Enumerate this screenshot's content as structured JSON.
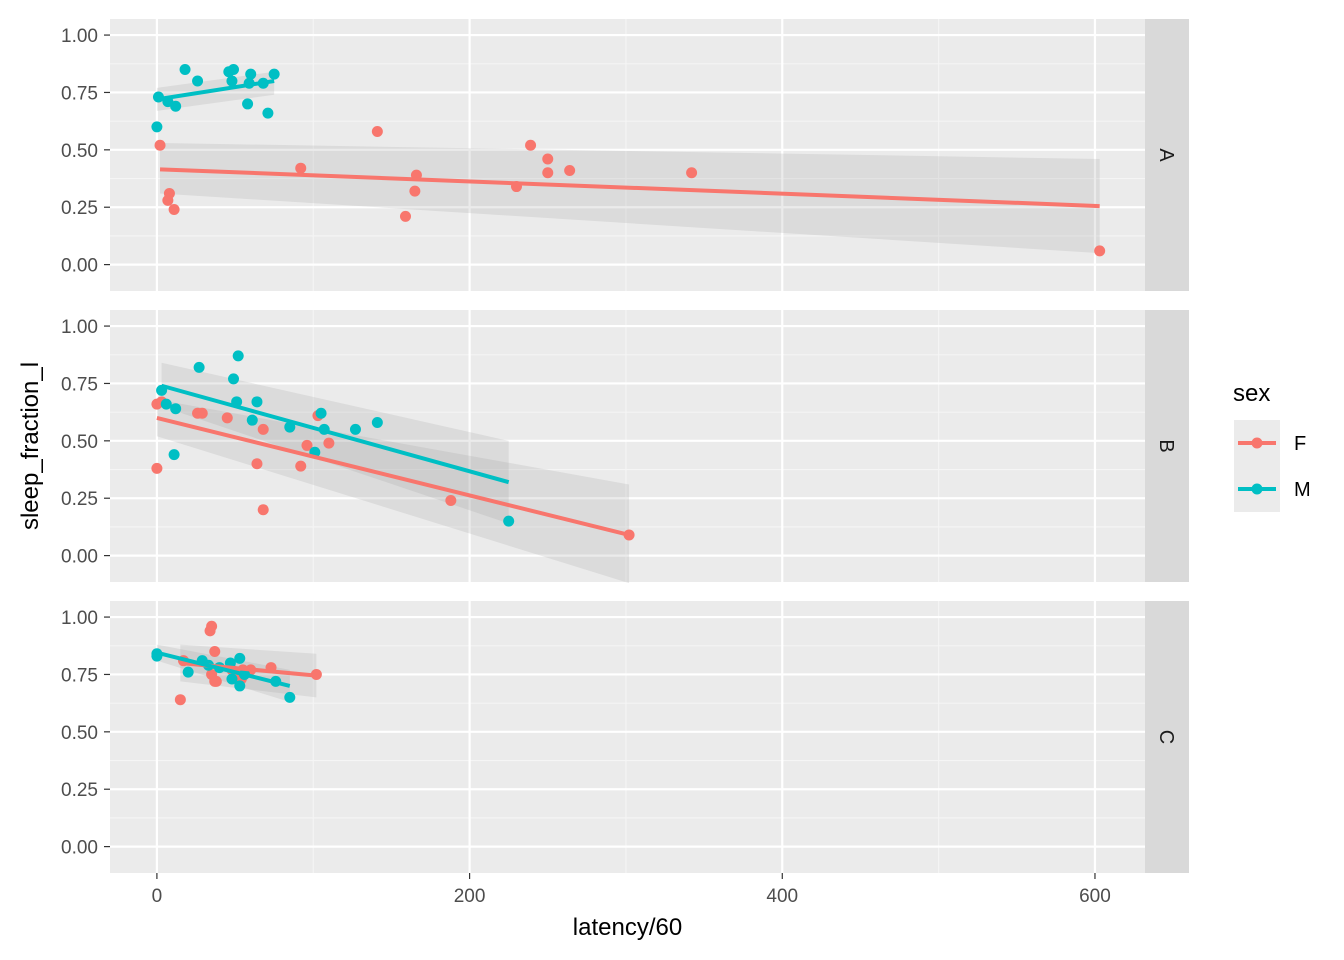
{
  "chart_data": {
    "type": "scatter",
    "xlabel": "latency/60",
    "ylabel": "sleep_fraction_l",
    "xlim": [
      -30,
      632
    ],
    "ylim": [
      -0.115,
      1.07
    ],
    "x_ticks": [
      0,
      200,
      400,
      600
    ],
    "x_tick_labels": [
      "0",
      "200",
      "400",
      "600"
    ],
    "y_ticks": [
      0,
      0.25,
      0.5,
      0.75,
      1.0
    ],
    "y_tick_labels": [
      "0.00",
      "0.25",
      "0.50",
      "0.75",
      "1.00"
    ],
    "grid": true,
    "smooth": "lm with confidence band",
    "legend": {
      "title": "sex",
      "position": "right",
      "entries": [
        {
          "label": "F",
          "color": "#F8766D"
        },
        {
          "label": "M",
          "color": "#00BFC4"
        }
      ]
    },
    "colors": {
      "F": "#F8766D",
      "M": "#00BFC4"
    },
    "facets": [
      {
        "label": "A",
        "series": [
          {
            "group": "F",
            "points": [
              [
                2,
                0.52
              ],
              [
                8,
                0.31
              ],
              [
                7,
                0.28
              ],
              [
                11,
                0.24
              ],
              [
                92,
                0.42
              ],
              [
                141,
                0.58
              ],
              [
                166,
                0.39
              ],
              [
                165,
                0.32
              ],
              [
                159,
                0.21
              ],
              [
                230,
                0.34
              ],
              [
                239,
                0.52
              ],
              [
                250,
                0.46
              ],
              [
                250,
                0.4
              ],
              [
                264,
                0.41
              ],
              [
                342,
                0.4
              ],
              [
                603,
                0.06
              ]
            ],
            "fit": {
              "x": [
                2,
                603
              ],
              "y": [
                0.415,
                0.255
              ]
            },
            "band": {
              "x": [
                2,
                603
              ],
              "upper": [
                0.53,
                0.46
              ],
              "lower": [
                0.31,
                0.05
              ]
            }
          },
          {
            "group": "M",
            "points": [
              [
                0,
                0.6
              ],
              [
                1,
                0.73
              ],
              [
                7,
                0.71
              ],
              [
                12,
                0.69
              ],
              [
                18,
                0.85
              ],
              [
                26,
                0.8
              ],
              [
                46,
                0.84
              ],
              [
                49,
                0.85
              ],
              [
                48,
                0.8
              ],
              [
                60,
                0.83
              ],
              [
                59,
                0.79
              ],
              [
                58,
                0.7
              ],
              [
                68,
                0.79
              ],
              [
                71,
                0.66
              ],
              [
                75,
                0.83
              ]
            ],
            "fit": {
              "x": [
                0,
                75
              ],
              "y": [
                0.72,
                0.8
              ]
            },
            "band": {
              "x": [
                0,
                75
              ],
              "upper": [
                0.77,
                0.84
              ],
              "lower": [
                0.67,
                0.74
              ]
            }
          }
        ]
      },
      {
        "label": "B",
        "series": [
          {
            "group": "F",
            "points": [
              [
                0,
                0.38
              ],
              [
                0,
                0.66
              ],
              [
                3,
                0.67
              ],
              [
                26,
                0.62
              ],
              [
                29,
                0.62
              ],
              [
                45,
                0.6
              ],
              [
                64,
                0.4
              ],
              [
                68,
                0.55
              ],
              [
                68,
                0.2
              ],
              [
                92,
                0.39
              ],
              [
                96,
                0.48
              ],
              [
                103,
                0.61
              ],
              [
                110,
                0.49
              ],
              [
                188,
                0.24
              ],
              [
                302,
                0.09
              ]
            ],
            "fit": {
              "x": [
                0,
                302
              ],
              "y": [
                0.6,
                0.09
              ]
            },
            "band": {
              "x": [
                0,
                302
              ],
              "upper": [
                0.68,
                0.31
              ],
              "lower": [
                0.52,
                -0.12
              ]
            }
          },
          {
            "group": "M",
            "points": [
              [
                3,
                0.72
              ],
              [
                6,
                0.66
              ],
              [
                11,
                0.44
              ],
              [
                12,
                0.64
              ],
              [
                27,
                0.82
              ],
              [
                49,
                0.77
              ],
              [
                51,
                0.67
              ],
              [
                52,
                0.87
              ],
              [
                61,
                0.59
              ],
              [
                64,
                0.67
              ],
              [
                85,
                0.56
              ],
              [
                101,
                0.45
              ],
              [
                105,
                0.62
              ],
              [
                107,
                0.55
              ],
              [
                127,
                0.55
              ],
              [
                141,
                0.58
              ],
              [
                225,
                0.15
              ]
            ],
            "fit": {
              "x": [
                3,
                225
              ],
              "y": [
                0.74,
                0.32
              ]
            },
            "band": {
              "x": [
                3,
                225
              ],
              "upper": [
                0.84,
                0.5
              ],
              "lower": [
                0.65,
                0.14
              ]
            }
          }
        ]
      },
      {
        "label": "C",
        "series": [
          {
            "group": "F",
            "points": [
              [
                15,
                0.64
              ],
              [
                17,
                0.81
              ],
              [
                34,
                0.94
              ],
              [
                35,
                0.96
              ],
              [
                37,
                0.85
              ],
              [
                35,
                0.75
              ],
              [
                37,
                0.72
              ],
              [
                38,
                0.72
              ],
              [
                48,
                0.77
              ],
              [
                50,
                0.75
              ],
              [
                54,
                0.73
              ],
              [
                55,
                0.77
              ],
              [
                60,
                0.77
              ],
              [
                73,
                0.78
              ],
              [
                102,
                0.75
              ]
            ],
            "fit": {
              "x": [
                15,
                102
              ],
              "y": [
                0.8,
                0.745
              ]
            },
            "band": {
              "x": [
                15,
                102
              ],
              "upper": [
                0.88,
                0.84
              ],
              "lower": [
                0.72,
                0.65
              ]
            }
          },
          {
            "group": "M",
            "points": [
              [
                0,
                0.84
              ],
              [
                0,
                0.83
              ],
              [
                20,
                0.76
              ],
              [
                29,
                0.81
              ],
              [
                33,
                0.79
              ],
              [
                40,
                0.78
              ],
              [
                47,
                0.8
              ],
              [
                48,
                0.73
              ],
              [
                53,
                0.82
              ],
              [
                53,
                0.7
              ],
              [
                56,
                0.75
              ],
              [
                76,
                0.72
              ],
              [
                85,
                0.65
              ]
            ],
            "fit": {
              "x": [
                0,
                85
              ],
              "y": [
                0.845,
                0.7
              ]
            },
            "band": {
              "x": [
                0,
                85
              ],
              "upper": [
                0.88,
                0.77
              ],
              "lower": [
                0.81,
                0.63
              ]
            }
          }
        ]
      }
    ]
  }
}
